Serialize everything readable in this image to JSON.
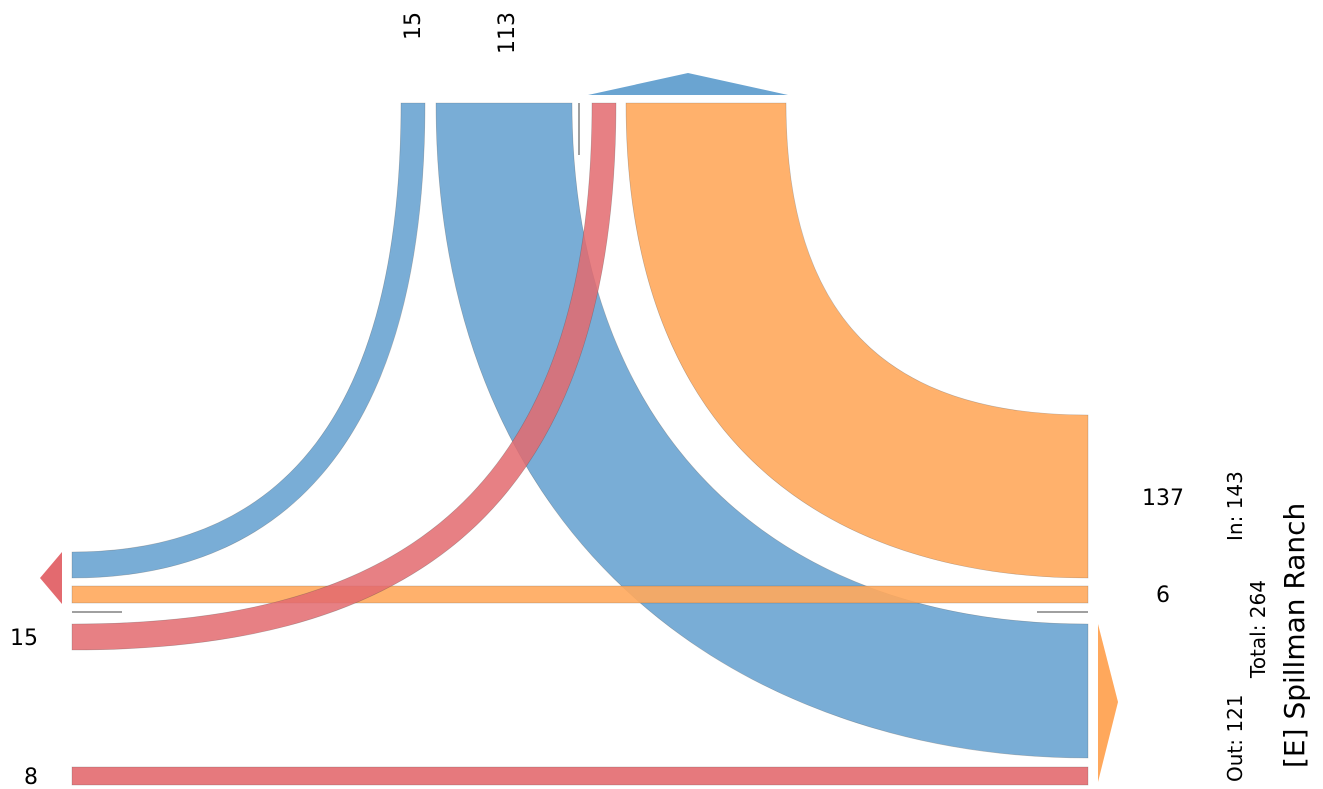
{
  "chart_data": {
    "type": "sankey",
    "title": "[E] Spillman Ranch",
    "totals": {
      "in_label": "In: 143",
      "total_label": "Total: 264",
      "out_label": "Out: 121"
    },
    "colors": {
      "blue": "#6aa4d1",
      "orange": "#ffa85c",
      "red": "#e36a6f"
    },
    "flows": [
      {
        "from": "top",
        "to": "left",
        "value": 15,
        "color": "blue"
      },
      {
        "from": "top",
        "to": "bottom-right",
        "value": 113,
        "color": "blue"
      },
      {
        "from": "top",
        "to": "right",
        "value": 137,
        "color": "orange"
      },
      {
        "from": "left",
        "to": "right",
        "value": 6,
        "color": "orange"
      },
      {
        "from": "left",
        "to": "top",
        "value": 15,
        "color": "red"
      },
      {
        "from": "left",
        "to": "right",
        "value": 8,
        "color": "red"
      }
    ],
    "labels": {
      "top_a": "15",
      "top_b": "113",
      "right_a": "137",
      "right_b": "6",
      "left_a": "15",
      "left_b": "8"
    }
  }
}
